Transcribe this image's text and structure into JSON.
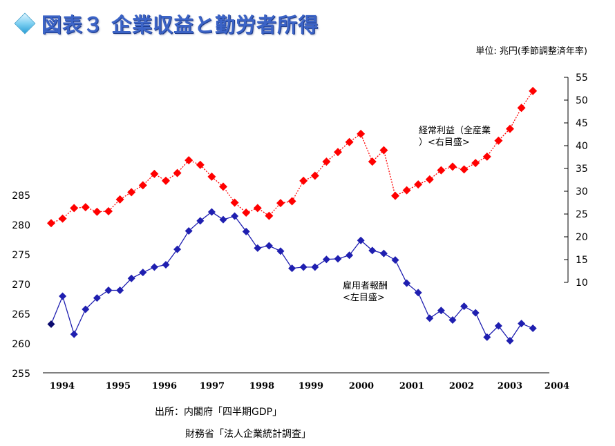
{
  "title": "図表３ 企業収益と勤労者所得",
  "unit": "単位: 兆円(季節調整済年率)",
  "title_icon": "diamond-icon",
  "colors": {
    "left_series": "#1f1fb0",
    "right_series": "#ff0000",
    "title": "#3b63c6"
  },
  "source": {
    "line1": "出所：内閣府「四半期GDP」",
    "line2": "財務省「法人企業統計調査」"
  },
  "chart_data": {
    "type": "line",
    "x_labels": [
      "1994",
      "1995",
      "1996",
      "1997",
      "1998",
      "1999",
      "2000",
      "2001",
      "2002",
      "2003",
      "2004"
    ],
    "y_left": {
      "min": 255,
      "max": 285,
      "ticks": [
        255,
        260,
        265,
        270,
        275,
        280,
        285
      ]
    },
    "y_right": {
      "min": 10,
      "max": 55,
      "ticks": [
        10,
        15,
        20,
        25,
        30,
        35,
        40,
        45,
        50,
        55
      ]
    },
    "grid": false,
    "series": [
      {
        "name": "雇用者報酬\n<左目盛>",
        "axis": "left",
        "values": [
          263.2,
          267.9,
          261.5,
          265.7,
          267.6,
          268.9,
          268.9,
          270.9,
          271.9,
          272.8,
          273.2,
          275.8,
          278.9,
          280.6,
          282.1,
          280.8,
          281.4,
          278.8,
          276.0,
          276.4,
          275.5,
          272.6,
          272.8,
          272.8,
          274.1,
          274.2,
          274.8,
          277.3,
          275.6,
          275.1,
          274.0,
          270.1,
          268.5,
          264.2,
          265.5,
          263.9,
          266.2,
          265.1,
          261.0,
          262.9,
          260.4,
          263.3,
          262.5
        ]
      },
      {
        "name": "経常利益（全産業\n）<右目盛>",
        "axis": "right",
        "values": [
          23.0,
          24.0,
          26.3,
          26.5,
          25.5,
          25.6,
          28.2,
          29.8,
          31.3,
          33.8,
          32.3,
          34.0,
          36.8,
          35.8,
          33.2,
          31.0,
          27.5,
          25.3,
          26.3,
          24.6,
          27.4,
          27.8,
          32.3,
          33.4,
          36.5,
          38.6,
          40.8,
          42.6,
          36.5,
          39.0,
          29.0,
          30.2,
          31.5,
          32.6,
          34.6,
          35.4,
          34.8,
          36.2,
          37.6,
          41.1,
          43.7,
          48.3,
          52.0
        ]
      }
    ],
    "series_labels": [
      {
        "series": 0,
        "lines": [
          "雇用者報酬",
          "<左目盛>"
        ]
      },
      {
        "series": 1,
        "lines": [
          "経常利益（全産業",
          "）<右目盛>"
        ]
      }
    ]
  }
}
